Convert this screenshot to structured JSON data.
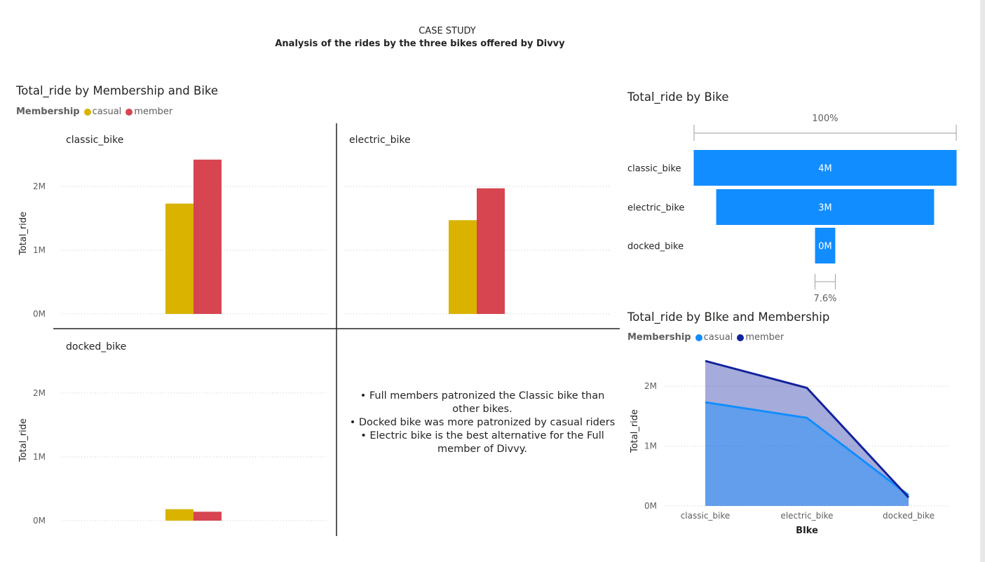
{
  "header": {
    "title": "CASE STUDY",
    "subtitle": "Analysis of the rides by the three bikes offered by Divvy"
  },
  "colors": {
    "casual_yellow": "#d9b300",
    "member_red": "#d64550",
    "funnel_blue": "#118dff",
    "area_casual": "#118dff",
    "area_member": "#12239e"
  },
  "visual_small_multiples": {
    "title": "Total_ride by Membership and Bike",
    "legend_title": "Membership",
    "legend": [
      "casual",
      "member"
    ],
    "ylabel": "Total_ride",
    "tick_labels": [
      "0M",
      "1M",
      "2M"
    ],
    "panels": [
      {
        "label": "classic_bike"
      },
      {
        "label": "electric_bike"
      },
      {
        "label": "docked_bike"
      }
    ]
  },
  "visual_funnel": {
    "title": "Total_ride by Bike",
    "top_percent": "100%",
    "bottom_percent": "7.6%",
    "rows": [
      {
        "label": "classic_bike",
        "value_label": "4M"
      },
      {
        "label": "electric_bike",
        "value_label": "3M"
      },
      {
        "label": "docked_bike",
        "value_label": "0M"
      }
    ]
  },
  "visual_area": {
    "title": "Total_ride by BIke and Membership",
    "legend_title": "Membership",
    "legend": [
      "casual",
      "member"
    ],
    "ylabel": "Total_ride",
    "xlabel": "BIke",
    "tick_labels": [
      "0M",
      "1M",
      "2M"
    ],
    "categories": [
      "classic_bike",
      "electric_bike",
      "docked_bike"
    ]
  },
  "insights": [
    "• Full members patronized the Classic bike than other bikes.",
    "• Docked bike was more patronized by casual riders",
    "• Electric bike is the best alternative for the Full member of Divvy."
  ],
  "chart_data": [
    {
      "type": "bar",
      "title": "Total_ride by Membership and Bike",
      "facets": [
        "classic_bike",
        "electric_bike",
        "docked_bike"
      ],
      "series": [
        {
          "name": "casual",
          "values": [
            1.73,
            1.47,
            0.18
          ]
        },
        {
          "name": "member",
          "values": [
            2.42,
            1.97,
            0.14
          ]
        }
      ],
      "ylabel": "Total_ride",
      "ylim": [
        0,
        2.5
      ],
      "unit": "M",
      "legend": "top-left",
      "grid": true
    },
    {
      "type": "funnel",
      "title": "Total_ride by Bike",
      "categories": [
        "classic_bike",
        "electric_bike",
        "docked_bike"
      ],
      "values": [
        4.15,
        3.44,
        0.32
      ],
      "value_labels": [
        "4M",
        "3M",
        "0M"
      ],
      "percent_of_first": [
        "100%",
        "7.6%"
      ]
    },
    {
      "type": "area",
      "title": "Total_ride by BIke and Membership",
      "categories": [
        "classic_bike",
        "electric_bike",
        "docked_bike"
      ],
      "series": [
        {
          "name": "casual",
          "values": [
            1.73,
            1.47,
            0.18
          ]
        },
        {
          "name": "member",
          "values": [
            2.42,
            1.97,
            0.14
          ]
        }
      ],
      "ylabel": "Total_ride",
      "xlabel": "BIke",
      "ylim": [
        0,
        2.5
      ],
      "unit": "M",
      "legend": "top-left",
      "grid": true
    }
  ]
}
